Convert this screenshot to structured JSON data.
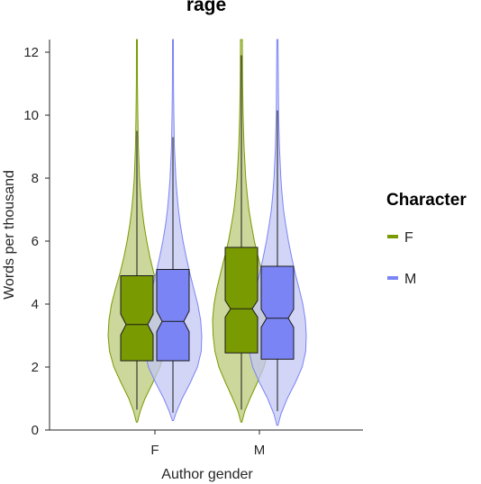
{
  "chart_data": {
    "type": "violin",
    "title": "rage",
    "xlabel": "Author gender",
    "ylabel": "Words per thousand",
    "categories": [
      "F",
      "M"
    ],
    "ylim": [
      0,
      12.4
    ],
    "yticks": [
      0,
      2,
      4,
      6,
      8,
      10,
      12
    ],
    "grid": false,
    "legend": {
      "title": "Character",
      "position": "right",
      "entries": [
        {
          "label": "F",
          "color": "#7a9a01"
        },
        {
          "label": "M",
          "color": "#7b84f5"
        }
      ]
    },
    "series": [
      {
        "name": "F",
        "color": "#7a9a01",
        "fill": "#b9c97a",
        "groups": [
          {
            "category": "F",
            "min": 0.25,
            "q1": 2.2,
            "median": 3.35,
            "q3": 4.9,
            "whisker_low": 0.65,
            "whisker_high": 9.5,
            "max": 12.4,
            "notch": 0.15,
            "density": [
              [
                0.25,
                0.02
              ],
              [
                0.6,
                0.12
              ],
              [
                1.0,
                0.28
              ],
              [
                1.5,
                0.55
              ],
              [
                2.0,
                0.8
              ],
              [
                2.5,
                0.95
              ],
              [
                3.0,
                1.0
              ],
              [
                3.5,
                0.97
              ],
              [
                4.0,
                0.88
              ],
              [
                4.5,
                0.74
              ],
              [
                5.0,
                0.58
              ],
              [
                5.5,
                0.45
              ],
              [
                6.0,
                0.34
              ],
              [
                6.5,
                0.25
              ],
              [
                7.0,
                0.18
              ],
              [
                7.5,
                0.13
              ],
              [
                8.0,
                0.09
              ],
              [
                9.0,
                0.05
              ],
              [
                10.0,
                0.03
              ],
              [
                11.0,
                0.02
              ],
              [
                12.4,
                0.015
              ]
            ]
          },
          {
            "category": "M",
            "min": 0.25,
            "q1": 2.45,
            "median": 3.85,
            "q3": 5.8,
            "whisker_low": 0.65,
            "whisker_high": 11.9,
            "max": 12.4,
            "notch": 0.12,
            "density": [
              [
                0.25,
                0.02
              ],
              [
                0.6,
                0.12
              ],
              [
                1.0,
                0.3
              ],
              [
                1.5,
                0.55
              ],
              [
                2.0,
                0.78
              ],
              [
                2.5,
                0.92
              ],
              [
                3.0,
                0.98
              ],
              [
                3.5,
                1.0
              ],
              [
                4.0,
                0.95
              ],
              [
                4.5,
                0.85
              ],
              [
                5.0,
                0.72
              ],
              [
                5.5,
                0.58
              ],
              [
                6.0,
                0.45
              ],
              [
                6.5,
                0.35
              ],
              [
                7.0,
                0.26
              ],
              [
                7.5,
                0.2
              ],
              [
                8.0,
                0.15
              ],
              [
                9.0,
                0.09
              ],
              [
                10.0,
                0.06
              ],
              [
                11.0,
                0.04
              ],
              [
                12.4,
                0.03
              ]
            ]
          }
        ]
      },
      {
        "name": "M",
        "color": "#7b84f5",
        "fill": "#c3c7f3",
        "groups": [
          {
            "category": "F",
            "min": 0.3,
            "q1": 2.2,
            "median": 3.45,
            "q3": 5.1,
            "whisker_low": 0.55,
            "whisker_high": 9.3,
            "max": 12.4,
            "notch": 0.15,
            "density": [
              [
                0.3,
                0.02
              ],
              [
                0.6,
                0.13
              ],
              [
                1.0,
                0.32
              ],
              [
                1.5,
                0.6
              ],
              [
                2.0,
                0.85
              ],
              [
                2.5,
                0.98
              ],
              [
                3.0,
                1.0
              ],
              [
                3.5,
                0.96
              ],
              [
                4.0,
                0.86
              ],
              [
                4.5,
                0.72
              ],
              [
                5.0,
                0.58
              ],
              [
                5.5,
                0.46
              ],
              [
                6.0,
                0.35
              ],
              [
                6.5,
                0.26
              ],
              [
                7.0,
                0.19
              ],
              [
                7.5,
                0.14
              ],
              [
                8.0,
                0.1
              ],
              [
                9.0,
                0.05
              ],
              [
                10.0,
                0.03
              ],
              [
                11.0,
                0.02
              ],
              [
                12.4,
                0.015
              ]
            ]
          },
          {
            "category": "M",
            "min": 0.15,
            "q1": 2.25,
            "median": 3.55,
            "q3": 5.2,
            "whisker_low": 0.6,
            "whisker_high": 10.15,
            "max": 12.4,
            "notch": 0.13,
            "density": [
              [
                0.15,
                0.02
              ],
              [
                0.5,
                0.12
              ],
              [
                1.0,
                0.34
              ],
              [
                1.5,
                0.62
              ],
              [
                2.0,
                0.86
              ],
              [
                2.5,
                0.98
              ],
              [
                3.0,
                1.0
              ],
              [
                3.5,
                0.97
              ],
              [
                4.0,
                0.88
              ],
              [
                4.5,
                0.75
              ],
              [
                5.0,
                0.61
              ],
              [
                5.5,
                0.49
              ],
              [
                6.0,
                0.38
              ],
              [
                6.5,
                0.29
              ],
              [
                7.0,
                0.21
              ],
              [
                7.5,
                0.16
              ],
              [
                8.0,
                0.12
              ],
              [
                9.0,
                0.07
              ],
              [
                10.0,
                0.04
              ],
              [
                11.0,
                0.03
              ],
              [
                12.4,
                0.02
              ]
            ]
          }
        ]
      }
    ]
  }
}
